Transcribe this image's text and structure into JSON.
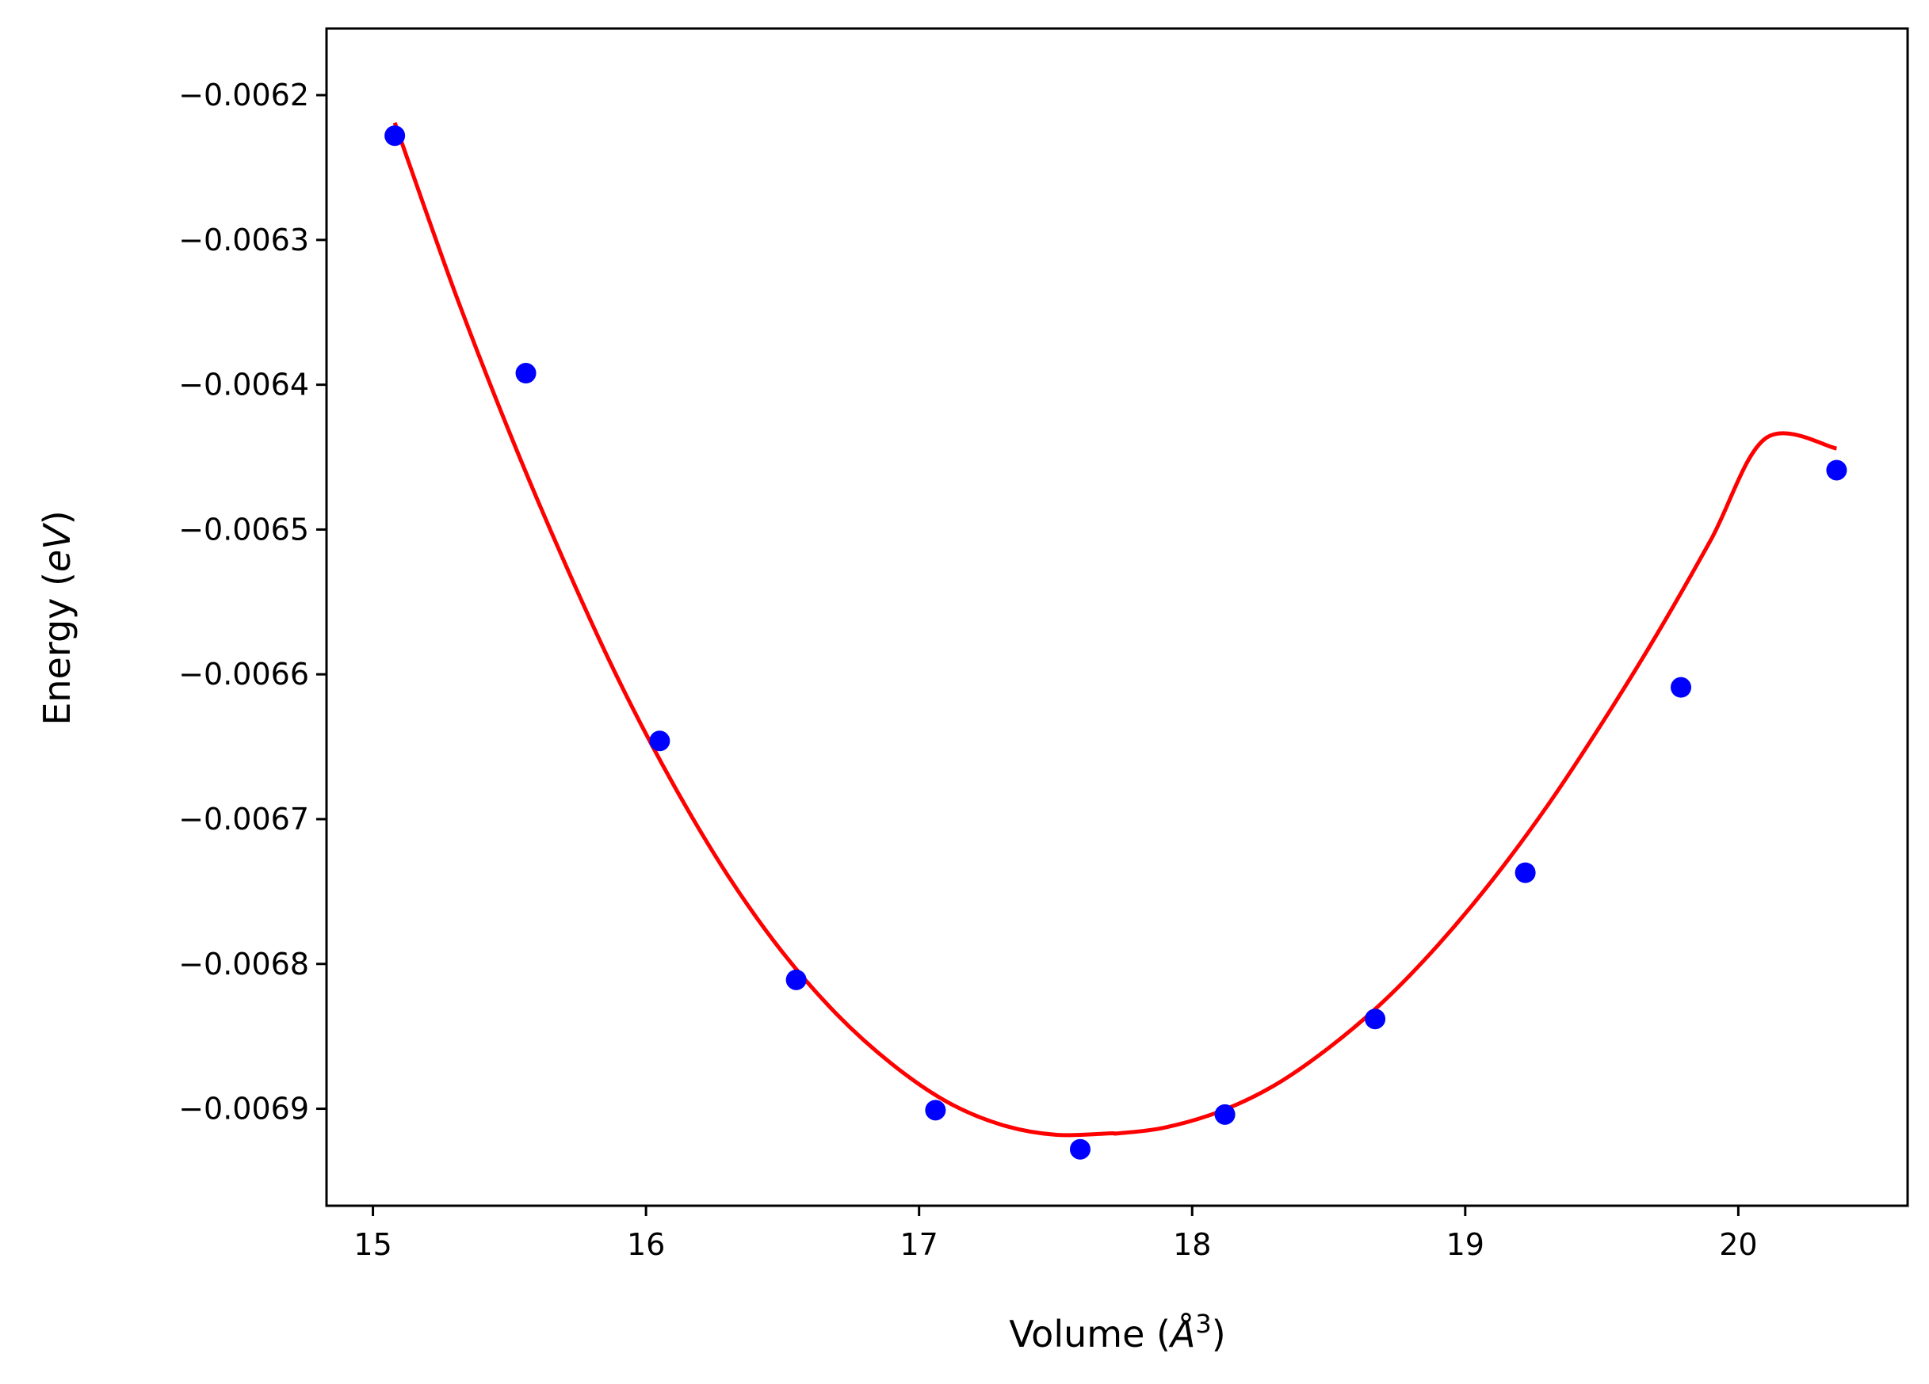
{
  "chart_data": {
    "type": "scatter",
    "xlabel": {
      "prefix": "Volume (",
      "symbol": "Å",
      "exponent": "3",
      "suffix": ")"
    },
    "ylabel": {
      "prefix": "Energy (",
      "symbol": "eV",
      "suffix": ")"
    },
    "xlim": [
      14.83,
      20.62
    ],
    "ylim": [
      -0.006967,
      -0.006154
    ],
    "x_ticks": [
      15,
      16,
      17,
      18,
      19,
      20
    ],
    "x_tick_labels": [
      "15",
      "16",
      "17",
      "18",
      "19",
      "20"
    ],
    "y_ticks": [
      -0.0062,
      -0.0063,
      -0.0064,
      -0.0065,
      -0.0066,
      -0.0067,
      -0.0068,
      -0.0069
    ],
    "y_tick_labels": [
      "−0.0062",
      "−0.0063",
      "−0.0064",
      "−0.0065",
      "−0.0066",
      "−0.0067",
      "−0.0068",
      "−0.0069"
    ],
    "grid": false,
    "series": [
      {
        "kind": "points",
        "color": "#0000ff",
        "x": [
          15.08,
          15.56,
          16.05,
          16.55,
          17.06,
          17.59,
          18.12,
          18.67,
          19.22,
          19.79,
          20.36
        ],
        "y": [
          -0.006228,
          -0.006392,
          -0.006646,
          -0.006811,
          -0.006901,
          -0.006928,
          -0.006904,
          -0.006838,
          -0.006737,
          -0.006609,
          -0.006459
        ]
      },
      {
        "kind": "fit-curve",
        "color": "#ff0000",
        "x": [
          15.08,
          15.3,
          15.5,
          15.7,
          15.9,
          16.1,
          16.3,
          16.5,
          16.7,
          16.9,
          17.1,
          17.3,
          17.5,
          17.7,
          17.73,
          17.9,
          18.1,
          18.3,
          18.5,
          18.7,
          18.9,
          19.1,
          19.3,
          19.5,
          19.7,
          19.9,
          20.1,
          20.36
        ],
        "y": [
          -0.006219,
          -0.006336,
          -0.006433,
          -0.006522,
          -0.006604,
          -0.006676,
          -0.006739,
          -0.006792,
          -0.006835,
          -0.006869,
          -0.006895,
          -0.006911,
          -0.006918,
          -0.006917,
          -0.006917,
          -0.006913,
          -0.006902,
          -0.006884,
          -0.006858,
          -0.006826,
          -0.006787,
          -0.006742,
          -0.006691,
          -0.006634,
          -0.006573,
          -0.006507,
          -0.006437,
          -0.006444
        ]
      }
    ]
  }
}
